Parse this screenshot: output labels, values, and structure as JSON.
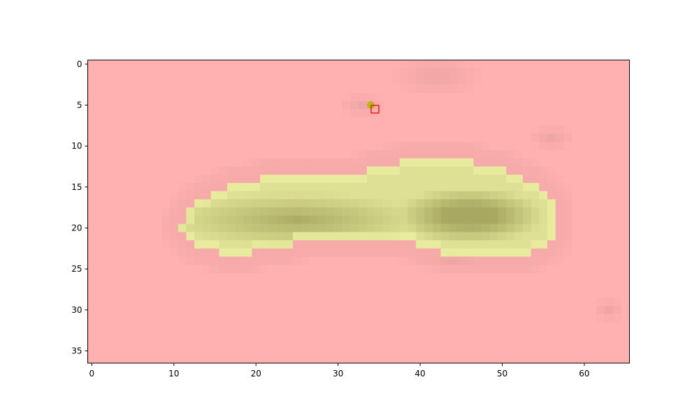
{
  "chart_data": {
    "type": "heatmap",
    "title": "",
    "xlabel": "",
    "ylabel": "",
    "grid": false,
    "image_shape": [
      37,
      66
    ],
    "xlim": [
      -0.5,
      65.5
    ],
    "ylim": [
      36.5,
      -0.5
    ],
    "x_ticks": [
      0,
      10,
      20,
      30,
      40,
      50,
      60
    ],
    "y_ticks": [
      0,
      5,
      10,
      15,
      20,
      25,
      30,
      35
    ],
    "colors": {
      "background": "#ffb0b0",
      "mask_edge": "#e8eb9e",
      "mask_core": "#a8a862",
      "shadow": "#e8a0a0",
      "point": "#b5b500",
      "marker_square": "#e00000"
    },
    "mask_rows": [
      {
        "row": 12,
        "start": 38,
        "end": 46
      },
      {
        "row": 13,
        "start": 34,
        "end": 50
      },
      {
        "row": 14,
        "start": 21,
        "end": 52
      },
      {
        "row": 15,
        "start": 17,
        "end": 54
      },
      {
        "row": 16,
        "start": 15,
        "end": 55
      },
      {
        "row": 17,
        "start": 13,
        "end": 56
      },
      {
        "row": 18,
        "start": 12,
        "end": 56
      },
      {
        "row": 19,
        "start": 12,
        "end": 56
      },
      {
        "row": 20,
        "start": 11,
        "end": 56
      },
      {
        "row": 21,
        "start": 12,
        "end": 56
      },
      {
        "row": 22,
        "start": 13,
        "end": 55
      },
      {
        "row": 23,
        "start": 16,
        "end": 53
      }
    ],
    "mask_gaps": [
      {
        "row": 22,
        "start": 25,
        "end": 39
      },
      {
        "row": 23,
        "start": 20,
        "end": 42
      }
    ],
    "core_centers": [
      {
        "x": 46,
        "y": 18.5,
        "rx": 7,
        "ry": 2.6,
        "strength": 1.0
      },
      {
        "x": 25,
        "y": 19,
        "rx": 12,
        "ry": 2.5,
        "strength": 0.6
      }
    ],
    "shadow_blobs": [
      {
        "x": 42,
        "y": 1.5,
        "rx": 6,
        "ry": 2.5
      },
      {
        "x": 33,
        "y": 5,
        "rx": 3,
        "ry": 1.5
      },
      {
        "x": 56,
        "y": 9,
        "rx": 3,
        "ry": 1.5
      },
      {
        "x": 63,
        "y": 30,
        "rx": 2,
        "ry": 1.5
      },
      {
        "x": 44,
        "y": 24,
        "rx": 6,
        "ry": 1
      }
    ],
    "points": [
      {
        "x": 34,
        "y": 5,
        "marker": "circle"
      }
    ],
    "squares": [
      {
        "x": 34.5,
        "y": 5.5,
        "marker": "square"
      }
    ]
  }
}
